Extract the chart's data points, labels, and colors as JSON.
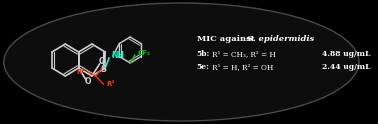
{
  "bg_color": "#000000",
  "ellipse_color": "#111111",
  "ellipse_edge": "#555555",
  "title_text": "MIC against ",
  "title_italic": "S. epidermidis",
  "row1_label": "5b: R¹ = CH₃, R² = H",
  "row1_value": "4.88 ug/mL",
  "row2_label": "5e: R¹ = H, R² = OH",
  "row2_value": "2.44 ug/mL",
  "text_color": "#ffffff",
  "nh_color": "#00ffcc",
  "cf3_color": "#00cc00",
  "red_color": "#ff3300",
  "struct_color": "#ffffff"
}
